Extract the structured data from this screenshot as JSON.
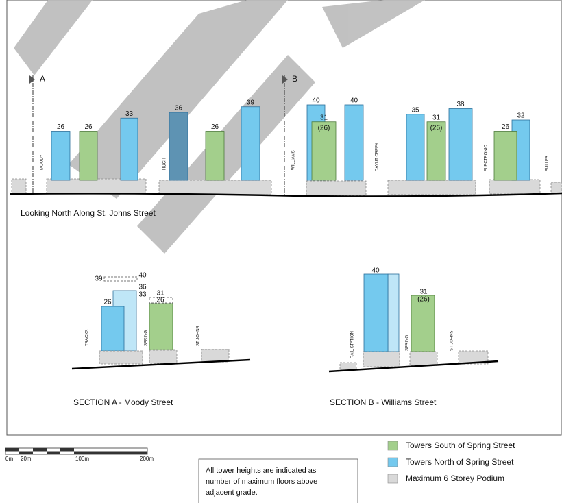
{
  "elevation": {
    "markers": [
      "A",
      "B"
    ],
    "streets": [
      "MOODY",
      "HUGH",
      "WILLIAMS",
      "DAYUT CREEK",
      "ELECTRONIC",
      "BULLER"
    ],
    "towers": [
      {
        "height": 26,
        "color": "#74c9ee"
      },
      {
        "height": 26,
        "color": "#a3cf8c"
      },
      {
        "height": 33,
        "color": "#74c9ee"
      },
      {
        "height": 36,
        "color": "#5e93b3"
      },
      {
        "height": 26,
        "color": "#a3cf8c"
      },
      {
        "height": 39,
        "color": "#74c9ee"
      },
      {
        "height": 40,
        "color": "#74c9ee"
      },
      {
        "height": 31,
        "color": "#a3cf8c",
        "base_label": "(26)"
      },
      {
        "height": 40,
        "color": "#74c9ee"
      },
      {
        "height": 35,
        "color": "#74c9ee"
      },
      {
        "height": 31,
        "color": "#a3cf8c",
        "base_label": "(26)"
      },
      {
        "height": 38,
        "color": "#74c9ee"
      },
      {
        "height": 32,
        "color": "#74c9ee"
      },
      {
        "height": 26,
        "color": "#a3cf8c"
      }
    ],
    "caption": "Looking North Along St. Johns Street"
  },
  "sections": [
    {
      "title": "SECTION A - Moody Street",
      "streets": [
        "TRACKS",
        "SPRING",
        "ST JOHNS"
      ],
      "labels": [
        39,
        40,
        36,
        33,
        26,
        31,
        26
      ]
    },
    {
      "title": "SECTION B - Williams Street",
      "streets": [
        "RAIL STATION",
        "SPRING",
        "ST JOHNS"
      ],
      "labels": [
        40,
        31,
        "(26)"
      ]
    }
  ],
  "scale": {
    "labels": [
      "0m",
      "20m",
      "100m",
      "200m"
    ]
  },
  "note": [
    "All tower heights are indicated as",
    "number of maximum floors above",
    "adjacent grade."
  ],
  "legend": [
    {
      "label": "Towers South of Spring Street",
      "color": "#a3cf8c"
    },
    {
      "label": "Towers North of Spring Street",
      "color": "#74c9ee"
    },
    {
      "label": "Maximum 6 Storey Podium",
      "color": "#d9d9d9"
    }
  ]
}
